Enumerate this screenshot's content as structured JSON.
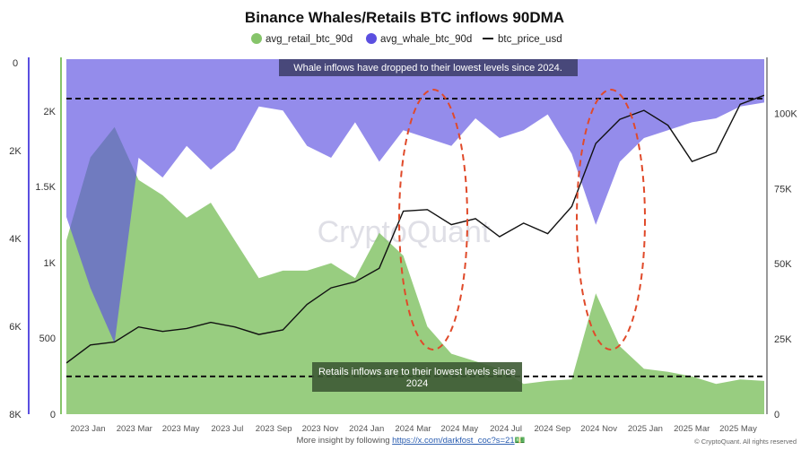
{
  "chart_data": {
    "type": "area",
    "title": "Binance Whales/Retails BTC inflows 90DMA",
    "legend_placement": "top-center",
    "legend": [
      {
        "label": "avg_retail_btc_90d",
        "color": "#86c46a",
        "marker": "dot"
      },
      {
        "label": "avg_whale_btc_90d",
        "color": "#5b4fe0",
        "marker": "dot"
      },
      {
        "label": "btc_price_usd",
        "color": "#111111",
        "marker": "line"
      }
    ],
    "x_ticks": [
      "2023 Jan",
      "2023 Mar",
      "2023 May",
      "2023 Jul",
      "2023 Sep",
      "2023 Nov",
      "2024 Jan",
      "2024 Mar",
      "2024 May",
      "2024 Jul",
      "2024 Sep",
      "2024 Nov",
      "2025 Jan",
      "2025 Mar",
      "2025 May"
    ],
    "left_outer_axis": {
      "series": "avg_whale_btc_90d",
      "inverted": true,
      "range": [
        0,
        9000
      ],
      "ticks": [
        "0",
        "2K",
        "4K",
        "6K",
        "8K"
      ]
    },
    "left_inner_axis": {
      "series": "avg_retail_btc_90d",
      "range": [
        0,
        2350
      ],
      "ticks": [
        "2K",
        "1.5K",
        "1K",
        "500",
        "0"
      ]
    },
    "right_axis": {
      "series": "btc_price_usd",
      "range": [
        0,
        118000
      ],
      "ticks": [
        "100K",
        "75K",
        "50K",
        "25K",
        "0"
      ]
    },
    "grid": false,
    "series": [
      {
        "name": "avg_retail_btc_90d",
        "axis": "left_inner",
        "color": "#86c46a",
        "x": [
          "2023-01",
          "2023-02",
          "2023-03",
          "2023-04",
          "2023-05",
          "2023-06",
          "2023-07",
          "2023-08",
          "2023-09",
          "2023-10",
          "2023-11",
          "2023-12",
          "2024-01",
          "2024-02",
          "2024-03",
          "2024-04",
          "2024-05",
          "2024-06",
          "2024-07",
          "2024-08",
          "2024-09",
          "2024-10",
          "2024-11",
          "2024-12",
          "2025-01",
          "2025-02",
          "2025-03",
          "2025-04",
          "2025-05",
          "2025-06"
        ],
        "values": [
          1150,
          1700,
          1900,
          1550,
          1450,
          1300,
          1400,
          1150,
          900,
          950,
          950,
          1000,
          900,
          1200,
          1050,
          580,
          400,
          350,
          300,
          200,
          220,
          230,
          800,
          450,
          300,
          280,
          250,
          200,
          230,
          220
        ]
      },
      {
        "name": "avg_whale_btc_90d",
        "axis": "left_outer",
        "color": "#5b4fe0",
        "x": [
          "2023-01",
          "2023-02",
          "2023-03",
          "2023-04",
          "2023-05",
          "2023-06",
          "2023-07",
          "2023-08",
          "2023-09",
          "2023-10",
          "2023-11",
          "2023-12",
          "2024-01",
          "2024-02",
          "2024-03",
          "2024-04",
          "2024-05",
          "2024-06",
          "2024-07",
          "2024-08",
          "2024-09",
          "2024-10",
          "2024-11",
          "2024-12",
          "2025-01",
          "2025-02",
          "2025-03",
          "2025-04",
          "2025-05",
          "2025-06"
        ],
        "values": [
          4000,
          5800,
          7200,
          2500,
          3000,
          2200,
          2800,
          2300,
          1200,
          1300,
          2200,
          2500,
          1600,
          2600,
          1800,
          2000,
          2200,
          1500,
          2000,
          1800,
          1400,
          2400,
          4200,
          2600,
          2000,
          1800,
          1600,
          1500,
          1200,
          1100
        ]
      },
      {
        "name": "btc_price_usd",
        "axis": "right",
        "color": "#111111",
        "x": [
          "2023-01",
          "2023-02",
          "2023-03",
          "2023-04",
          "2023-05",
          "2023-06",
          "2023-07",
          "2023-08",
          "2023-09",
          "2023-10",
          "2023-11",
          "2023-12",
          "2024-01",
          "2024-02",
          "2024-03",
          "2024-04",
          "2024-05",
          "2024-06",
          "2024-07",
          "2024-08",
          "2024-09",
          "2024-10",
          "2024-11",
          "2024-12",
          "2025-01",
          "2025-02",
          "2025-03",
          "2025-04",
          "2025-05",
          "2025-06"
        ],
        "values": [
          17000,
          23000,
          24000,
          29000,
          27500,
          28500,
          30500,
          29000,
          26500,
          28000,
          36500,
          42000,
          44000,
          48500,
          67500,
          68000,
          63000,
          65000,
          59000,
          63500,
          60000,
          69000,
          90000,
          98000,
          101000,
          96000,
          84000,
          87000,
          103000,
          106000
        ]
      }
    ],
    "reference_lines": [
      {
        "axis": "left_outer",
        "value": 1000,
        "style": "dashed"
      },
      {
        "axis": "left_inner",
        "value": 250,
        "style": "dashed"
      }
    ],
    "annotations": [
      {
        "text": "Whale inflows have dropped to their lowest levels since 2024."
      },
      {
        "text": "Retails inflows are to their lowest levels since 2024"
      }
    ]
  },
  "footer": {
    "prefix": "More insight by following ",
    "link": "https://x.com/darkfost_coc?s=21",
    "emoji": "💵",
    "credit": "© CryptoQuant. All rights reserved"
  },
  "watermark": "CryptoQuant"
}
